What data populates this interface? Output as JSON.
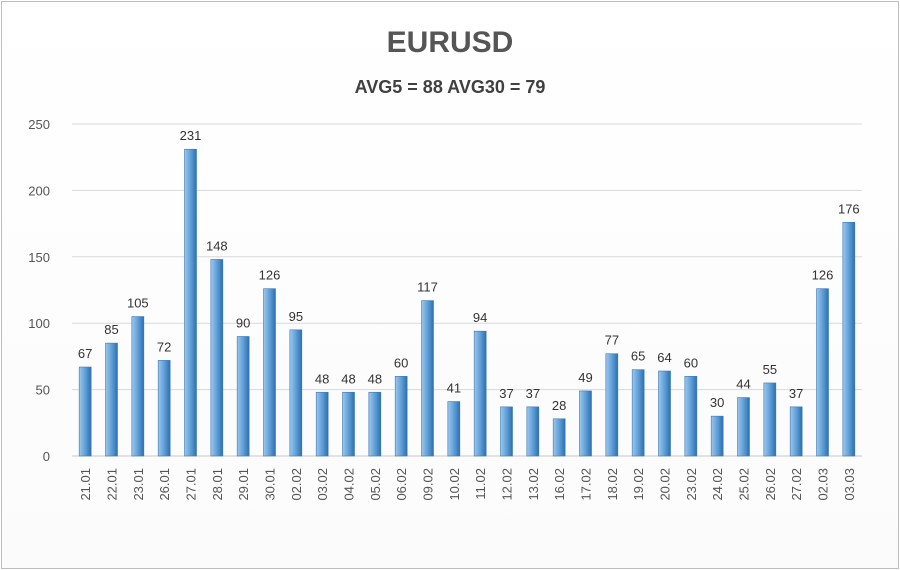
{
  "chart_data": {
    "type": "bar",
    "title": "EURUSD",
    "subtitle": "AVG5 = 88 AVG30 = 79",
    "categories": [
      "21.01",
      "22.01",
      "23.01",
      "26.01",
      "27.01",
      "28.01",
      "29.01",
      "30.01",
      "02.02",
      "03.02",
      "04.02",
      "05.02",
      "06.02",
      "09.02",
      "10.02",
      "11.02",
      "12.02",
      "13.02",
      "16.02",
      "17.02",
      "18.02",
      "19.02",
      "20.02",
      "23.02",
      "24.02",
      "25.02",
      "26.02",
      "27.02",
      "02.03",
      "03.03"
    ],
    "values": [
      67,
      85,
      105,
      72,
      231,
      148,
      90,
      126,
      95,
      48,
      48,
      48,
      60,
      117,
      41,
      94,
      37,
      37,
      28,
      49,
      77,
      65,
      64,
      60,
      30,
      44,
      55,
      37,
      126,
      176
    ],
    "data_labels": [
      "67",
      "85",
      "105",
      "72",
      "231",
      "148",
      "90",
      "126",
      "95",
      "48",
      "48",
      "48",
      "60",
      "117",
      "41",
      "94",
      "37",
      "37",
      "28",
      "49",
      "77",
      "65",
      "64",
      "60",
      "30",
      "44",
      "55",
      "37",
      "126",
      "176"
    ],
    "ylim": [
      0,
      250
    ],
    "yticks": [
      "0",
      "50",
      "100",
      "150",
      "200",
      "250"
    ],
    "xlabel": "",
    "ylabel": "",
    "grid": true,
    "legend": "none",
    "colors": {
      "bar_light": "#9cc8ee",
      "bar_mid": "#5b9bd5",
      "bar_dark": "#2e6fae",
      "grid": "#d9d9d9"
    }
  }
}
